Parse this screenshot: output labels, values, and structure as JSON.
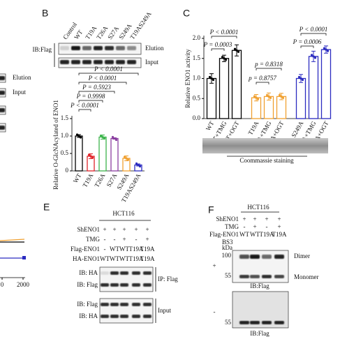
{
  "left_panel": {
    "blot_labels": [
      "Elution",
      "Input"
    ],
    "xticks": [
      0,
      2000
    ]
  },
  "panel_b": {
    "label": "B",
    "lanes": [
      "Control",
      "WT",
      "T19A",
      "T26A",
      "S27A",
      "S249A",
      "T19AS249A"
    ],
    "antibody": "IB:Flag",
    "blot_labels": [
      "Elution",
      "Input"
    ],
    "chart": {
      "type": "bar",
      "ylabel": "Relative O-GlcNAcylated of ENO1",
      "categories": [
        "WT",
        "T19A",
        "T26A",
        "S27A",
        "S249A",
        "T19AS249A"
      ],
      "values": [
        1.0,
        0.42,
        0.97,
        0.93,
        0.36,
        0.17
      ],
      "errors": [
        0.04,
        0.07,
        0.06,
        0.02,
        0.07,
        0.03
      ],
      "colors": [
        "#000000",
        "#e0242a",
        "#3cb44b",
        "#8b3fa0",
        "#f0a030",
        "#2b2bc0"
      ],
      "ylim": [
        0,
        1.5
      ],
      "yticks": [
        0,
        0.5,
        {
          "value": 1,
          "label": "1.0"
        },
        1.5
      ],
      "comparisons": [
        "P < 0.0001",
        "P < 0.0001",
        "P = 0.5923",
        "P = 0.9998",
        "P < 0.0001"
      ]
    }
  },
  "panel_c": {
    "label": "C",
    "chart": {
      "type": "bar",
      "ylabel": "Relative ENO1 activity",
      "categories": [
        "WT",
        "WT+TMG",
        "WT+OGT",
        "T19A",
        "T19A+TMG",
        "T19A+OGT",
        "S249A",
        "S249A+TMG",
        "S249A+OGT"
      ],
      "values": [
        1.0,
        1.5,
        1.7,
        0.52,
        0.55,
        0.55,
        1.0,
        1.55,
        1.72
      ],
      "errors": [
        0.12,
        0.08,
        0.14,
        0.08,
        0.09,
        0.08,
        0.1,
        0.13,
        0.09
      ],
      "colors": [
        "#000000",
        "#000000",
        "#000000",
        "#f0a030",
        "#f0a030",
        "#f0a030",
        "#2b2bc0",
        "#2b2bc0",
        "#2b2bc0"
      ],
      "ylim": [
        0,
        2.0
      ],
      "yticks": [
        {
          "value": 0,
          "label": "0.0"
        },
        0.5,
        {
          "value": 1,
          "label": "1.0"
        },
        1.5,
        {
          "value": 2,
          "label": "2.0"
        }
      ],
      "comparisons": [
        "P < 0.0001",
        "P = 0.0003",
        "p = 0.8318",
        "p = 0.8757",
        "P < 0.0001",
        "P = 0.0006"
      ]
    },
    "gel_label": "Coommassie staining"
  },
  "panel_e": {
    "label": "E",
    "cell_line": "HCT116",
    "rows": [
      {
        "name": "ShENO1",
        "cells": [
          "+",
          "+",
          "+",
          "+",
          "+"
        ]
      },
      {
        "name": "TMG",
        "cells": [
          "-",
          "-",
          "+",
          "-",
          "+"
        ]
      },
      {
        "name": "Flag-ENO1",
        "cells": [
          "-",
          "WT",
          "WT",
          "T19A",
          "T19A"
        ]
      },
      {
        "name": "HA-ENO1",
        "cells": [
          "WT",
          "WT",
          "WT",
          "T19A",
          "T19A"
        ]
      }
    ],
    "blots": [
      {
        "group": "IP: Flag",
        "rows": [
          "IB: HA",
          "IB: Flag"
        ]
      },
      {
        "group": "Input",
        "rows": [
          "IB: Flag",
          "IB: HA"
        ]
      }
    ]
  },
  "panel_f": {
    "label": "F",
    "cell_line": "HCT116",
    "rows": [
      {
        "name": "ShENO1",
        "cells": [
          "+",
          "+",
          "+",
          "+"
        ]
      },
      {
        "name": "TMG",
        "cells": [
          "-",
          "+",
          "-",
          "+"
        ]
      },
      {
        "name": "Flag-ENO1",
        "cells": [
          "WT",
          "WT",
          "T19A",
          "T19A"
        ]
      }
    ],
    "bs3": "BS3",
    "kda": "kDa",
    "blots": [
      {
        "condition": "+",
        "markers": [
          "100",
          "55"
        ],
        "bands": [
          "Dimer",
          "Monomer"
        ],
        "antibody": "IB:Flag"
      },
      {
        "condition": "-",
        "markers": [
          "55"
        ],
        "antibody": "IB:Flag"
      }
    ]
  }
}
